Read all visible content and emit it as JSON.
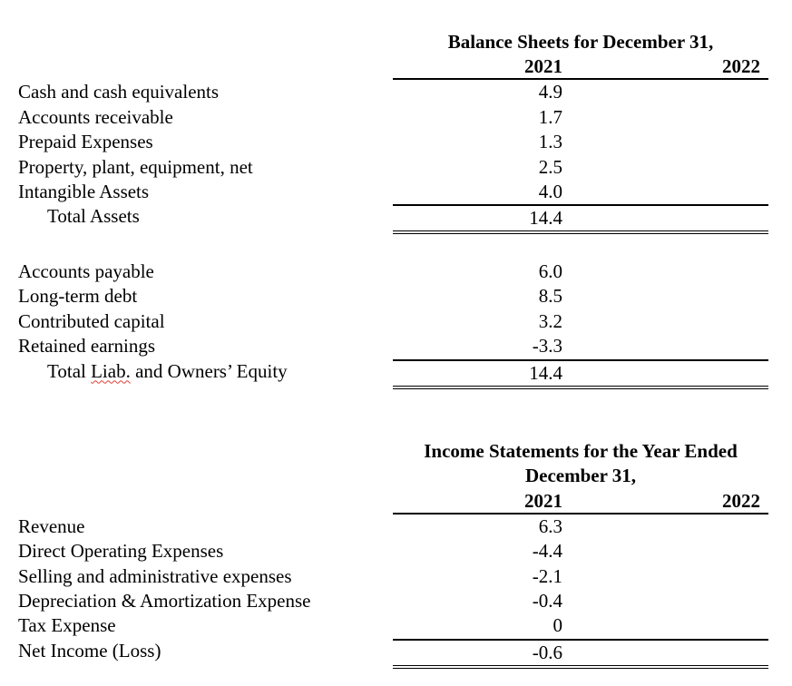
{
  "colors": {
    "page_bg": "#ffffff",
    "text": "#000000",
    "spellcheck_underline": "#e03e34"
  },
  "balance_sheet": {
    "title": "Balance Sheets for December 31,",
    "col_2021": "2021",
    "col_2022": "2022",
    "assets": {
      "rows": [
        {
          "label": "Cash and cash equivalents",
          "v2021": "4.9",
          "v2022": ""
        },
        {
          "label": "Accounts receivable",
          "v2021": "1.7",
          "v2022": ""
        },
        {
          "label": "Prepaid Expenses",
          "v2021": "1.3",
          "v2022": ""
        },
        {
          "label": "Property, plant, equipment, net",
          "v2021": "2.5",
          "v2022": ""
        },
        {
          "label": "Intangible Assets",
          "v2021": "4.0",
          "v2022": ""
        }
      ],
      "total": {
        "label": "Total Assets",
        "v2021": "14.4",
        "v2022": ""
      }
    },
    "liabilities_equity": {
      "rows": [
        {
          "label": "Accounts payable",
          "v2021": "6.0",
          "v2022": ""
        },
        {
          "label": "Long-term debt",
          "v2021": "8.5",
          "v2022": ""
        },
        {
          "label": "Contributed capital",
          "v2021": "3.2",
          "v2022": ""
        },
        {
          "label": "Retained earnings",
          "v2021": "-3.3",
          "v2022": ""
        }
      ],
      "total": {
        "label_pre": "Total ",
        "label_misspelled": "Liab.",
        "label_post": " and Owners’ Equity",
        "v2021": "14.4",
        "v2022": ""
      }
    }
  },
  "income_statement": {
    "title_line1": "Income Statements for the Year Ended",
    "title_line2": "December 31,",
    "col_2021": "2021",
    "col_2022": "2022",
    "rows": [
      {
        "label": "Revenue",
        "v2021": "6.3",
        "v2022": ""
      },
      {
        "label": "Direct Operating Expenses",
        "v2021": "-4.4",
        "v2022": ""
      },
      {
        "label": "Selling and administrative expenses",
        "v2021": "-2.1",
        "v2022": ""
      },
      {
        "label": "Depreciation & Amortization Expense",
        "v2021": "-0.4",
        "v2022": ""
      },
      {
        "label": "Tax Expense",
        "v2021": "0",
        "v2022": ""
      }
    ],
    "total": {
      "label": "Net Income (Loss)",
      "v2021": "-0.6",
      "v2022": ""
    }
  }
}
